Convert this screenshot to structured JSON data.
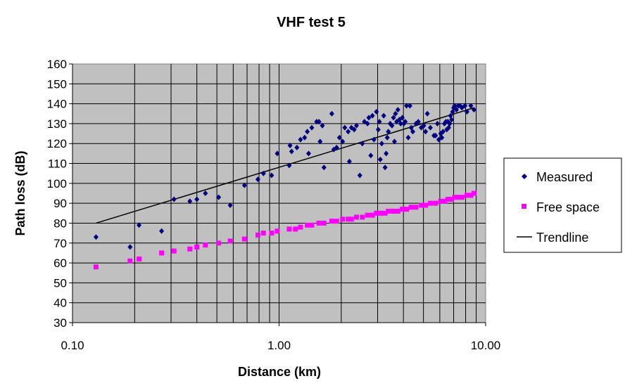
{
  "chart_data": {
    "type": "scatter",
    "title": "VHF test 5",
    "xlabel": "Distance (km)",
    "ylabel": "Path loss (dB)",
    "x_scale": "log",
    "xlim": [
      0.1,
      10
    ],
    "ylim": [
      30,
      160
    ],
    "x_tick_labels": [
      "0.10",
      "1.00",
      "10.00"
    ],
    "y_ticks": [
      30,
      40,
      50,
      60,
      70,
      80,
      90,
      100,
      110,
      120,
      130,
      140,
      150,
      160
    ],
    "grid": true,
    "plot_background": "#c0c0c0",
    "legend_position": "right",
    "series": [
      {
        "name": "Measured",
        "kind": "scatter",
        "marker": "diamond",
        "color": "#000080",
        "points": [
          [
            0.13,
            73
          ],
          [
            0.19,
            68
          ],
          [
            0.21,
            79
          ],
          [
            0.27,
            76
          ],
          [
            0.31,
            92
          ],
          [
            0.37,
            91
          ],
          [
            0.4,
            92
          ],
          [
            0.44,
            95
          ],
          [
            0.51,
            93
          ],
          [
            0.58,
            89
          ],
          [
            0.68,
            99
          ],
          [
            0.79,
            102
          ],
          [
            0.84,
            105
          ],
          [
            0.92,
            104
          ],
          [
            0.98,
            115
          ],
          [
            1.12,
            109
          ],
          [
            1.13,
            119
          ],
          [
            1.15,
            116
          ],
          [
            1.22,
            118
          ],
          [
            1.27,
            122
          ],
          [
            1.33,
            123
          ],
          [
            1.37,
            126
          ],
          [
            1.39,
            115
          ],
          [
            1.44,
            128
          ],
          [
            1.52,
            131
          ],
          [
            1.56,
            131
          ],
          [
            1.58,
            121
          ],
          [
            1.62,
            129
          ],
          [
            1.65,
            108
          ],
          [
            1.8,
            135
          ],
          [
            1.84,
            117
          ],
          [
            1.9,
            118
          ],
          [
            1.96,
            123
          ],
          [
            2.03,
            121
          ],
          [
            2.08,
            128
          ],
          [
            2.16,
            126
          ],
          [
            2.19,
            111
          ],
          [
            2.24,
            128
          ],
          [
            2.31,
            127
          ],
          [
            2.37,
            129
          ],
          [
            2.46,
            104
          ],
          [
            2.53,
            120
          ],
          [
            2.59,
            131
          ],
          [
            2.68,
            130
          ],
          [
            2.72,
            133
          ],
          [
            2.78,
            114
          ],
          [
            2.83,
            134
          ],
          [
            2.88,
            122
          ],
          [
            2.96,
            136
          ],
          [
            3.02,
            127
          ],
          [
            3.06,
            131
          ],
          [
            3.09,
            112
          ],
          [
            3.14,
            120
          ],
          [
            3.21,
            134
          ],
          [
            3.26,
            108
          ],
          [
            3.3,
            115
          ],
          [
            3.34,
            123
          ],
          [
            3.38,
            126
          ],
          [
            3.45,
            130
          ],
          [
            3.52,
            129
          ],
          [
            3.58,
            133
          ],
          [
            3.62,
            121
          ],
          [
            3.66,
            135
          ],
          [
            3.71,
            131
          ],
          [
            3.76,
            137
          ],
          [
            3.82,
            132
          ],
          [
            3.88,
            130
          ],
          [
            3.95,
            133
          ],
          [
            4.02,
            130
          ],
          [
            4.08,
            131
          ],
          [
            4.14,
            139
          ],
          [
            4.22,
            123
          ],
          [
            4.3,
            139
          ],
          [
            4.36,
            128
          ],
          [
            4.44,
            126
          ],
          [
            4.6,
            130
          ],
          [
            4.72,
            131
          ],
          [
            4.88,
            128
          ],
          [
            5.02,
            129
          ],
          [
            5.12,
            126
          ],
          [
            5.22,
            135
          ],
          [
            5.4,
            128
          ],
          [
            5.62,
            124
          ],
          [
            5.72,
            124
          ],
          [
            5.84,
            130
          ],
          [
            5.93,
            122
          ],
          [
            6.06,
            125
          ],
          [
            6.14,
            123
          ],
          [
            6.22,
            126
          ],
          [
            6.32,
            130
          ],
          [
            6.42,
            131
          ],
          [
            6.48,
            127
          ],
          [
            6.56,
            131
          ],
          [
            6.62,
            128
          ],
          [
            6.7,
            130
          ],
          [
            6.76,
            134
          ],
          [
            6.84,
            132
          ],
          [
            6.92,
            136
          ],
          [
            7.0,
            138
          ],
          [
            7.08,
            139
          ],
          [
            7.22,
            137
          ],
          [
            7.36,
            139
          ],
          [
            7.52,
            139
          ],
          [
            7.68,
            138
          ],
          [
            7.94,
            139
          ],
          [
            8.12,
            136
          ],
          [
            8.48,
            139
          ],
          [
            8.78,
            137
          ]
        ]
      },
      {
        "name": "Free space",
        "kind": "scatter",
        "marker": "square",
        "color": "#ff00ff",
        "points": [
          [
            0.13,
            58
          ],
          [
            0.19,
            61
          ],
          [
            0.21,
            62
          ],
          [
            0.27,
            65
          ],
          [
            0.31,
            66
          ],
          [
            0.37,
            67
          ],
          [
            0.4,
            68
          ],
          [
            0.44,
            69
          ],
          [
            0.51,
            70
          ],
          [
            0.58,
            71
          ],
          [
            0.68,
            72
          ],
          [
            0.79,
            74
          ],
          [
            0.84,
            75
          ],
          [
            0.92,
            75
          ],
          [
            0.98,
            76
          ],
          [
            1.12,
            77
          ],
          [
            1.2,
            77
          ],
          [
            1.27,
            78
          ],
          [
            1.37,
            79
          ],
          [
            1.44,
            79
          ],
          [
            1.56,
            80
          ],
          [
            1.65,
            80
          ],
          [
            1.8,
            81
          ],
          [
            1.9,
            81
          ],
          [
            2.03,
            82
          ],
          [
            2.16,
            82
          ],
          [
            2.24,
            82
          ],
          [
            2.37,
            83
          ],
          [
            2.53,
            83
          ],
          [
            2.68,
            84
          ],
          [
            2.83,
            84
          ],
          [
            2.96,
            85
          ],
          [
            3.09,
            85
          ],
          [
            3.26,
            85
          ],
          [
            3.38,
            86
          ],
          [
            3.58,
            86
          ],
          [
            3.76,
            86
          ],
          [
            3.95,
            87
          ],
          [
            4.14,
            87
          ],
          [
            4.36,
            88
          ],
          [
            4.6,
            88
          ],
          [
            4.88,
            89
          ],
          [
            5.12,
            89
          ],
          [
            5.4,
            90
          ],
          [
            5.72,
            90
          ],
          [
            6.06,
            91
          ],
          [
            6.32,
            91
          ],
          [
            6.56,
            92
          ],
          [
            6.84,
            92
          ],
          [
            7.08,
            93
          ],
          [
            7.36,
            93
          ],
          [
            7.68,
            93
          ],
          [
            8.12,
            94
          ],
          [
            8.48,
            94
          ],
          [
            8.78,
            95
          ]
        ]
      },
      {
        "name": "Trendline",
        "kind": "line",
        "color": "#000000",
        "points": [
          [
            0.13,
            80
          ],
          [
            8.8,
            138
          ]
        ]
      }
    ]
  }
}
